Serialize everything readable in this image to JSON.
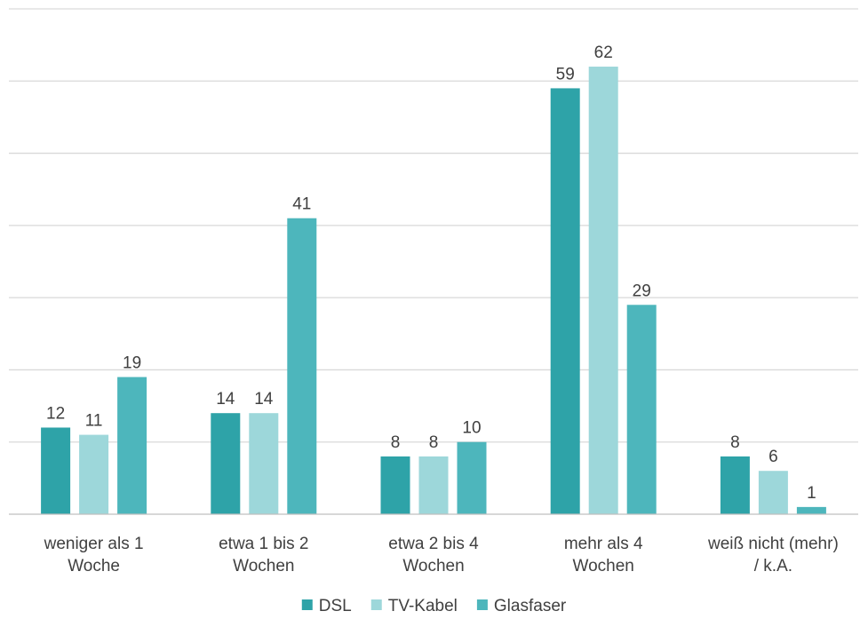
{
  "chart_data": {
    "type": "bar",
    "categories": [
      [
        "weniger als 1",
        "Woche"
      ],
      [
        "etwa 1 bis 2",
        "Wochen"
      ],
      [
        "etwa 2 bis 4",
        "Wochen"
      ],
      [
        "mehr als 4",
        "Wochen"
      ],
      [
        "weiß nicht (mehr)",
        "/ k.A."
      ]
    ],
    "series": [
      {
        "name": "DSL",
        "color": "#2ea3a8",
        "values": [
          12,
          14,
          8,
          59,
          8
        ]
      },
      {
        "name": "TV-Kabel",
        "color": "#9dd7da",
        "values": [
          11,
          14,
          8,
          62,
          6
        ]
      },
      {
        "name": "Glasfaser",
        "color": "#4db6bc",
        "values": [
          19,
          41,
          10,
          29,
          1
        ]
      }
    ],
    "ylim": [
      0,
      70
    ],
    "ytick_step": 10,
    "grid": true,
    "data_labels": true,
    "legend_position": "bottom"
  }
}
